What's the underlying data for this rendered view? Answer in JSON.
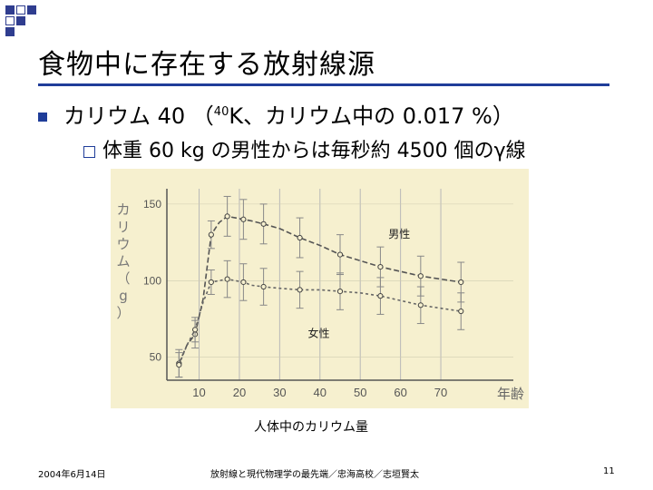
{
  "slide": {
    "title": "食物中に存在する放射線源",
    "bullet1": {
      "pre": "カリウム 40 （",
      "sup": "40",
      "post": "K、カリウム中の 0.017 %）"
    },
    "bullet2": "体重 60 kg の男性からは毎秒約 4500 個のγ線",
    "caption": "人体中のカリウム量",
    "footer": {
      "date": "2004年6月14日",
      "center": "放射線と現代物理学の最先端／忠海高校／志垣賢太",
      "page": "11"
    }
  },
  "chart_data": {
    "type": "line",
    "ylabel": "カリウム（g）",
    "xlabel": "年齢",
    "x_ticks": [
      "10",
      "20",
      "30",
      "40",
      "50",
      "60",
      "70"
    ],
    "y_ticks": [
      "50",
      "100",
      "150"
    ],
    "xlim": [
      2,
      88
    ],
    "ylim": [
      35,
      160
    ],
    "series": [
      {
        "name": "男性",
        "x": [
          5,
          7,
          9,
          11,
          13,
          15,
          17,
          19,
          21,
          23,
          26,
          30,
          35,
          40,
          45,
          50,
          55,
          60,
          65,
          70,
          75
        ],
        "values": [
          46,
          58,
          65,
          88,
          130,
          138,
          142,
          141,
          140,
          139,
          137,
          134,
          128,
          123,
          117,
          113,
          109,
          106,
          103,
          101,
          99
        ]
      },
      {
        "name": "女性",
        "x": [
          5,
          7,
          9,
          11,
          13,
          15,
          17,
          19,
          21,
          23,
          26,
          30,
          35,
          40,
          45,
          50,
          55,
          60,
          65,
          70,
          75
        ],
        "values": [
          45,
          58,
          68,
          86,
          99,
          100,
          101,
          100,
          99,
          97,
          96,
          95,
          94,
          94,
          93,
          92,
          90,
          87,
          84,
          82,
          80
        ]
      }
    ]
  }
}
